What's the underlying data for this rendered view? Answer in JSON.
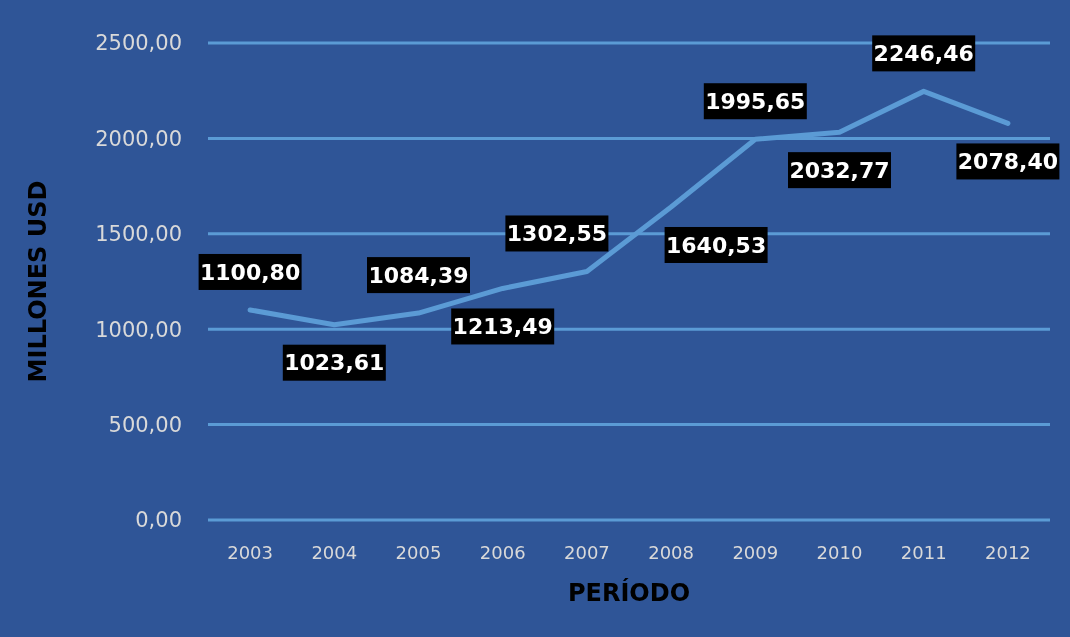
{
  "chart_data": {
    "type": "line",
    "xlabel": "PERÍODO",
    "ylabel": "MILLONES USD",
    "categories": [
      "2003",
      "2004",
      "2005",
      "2006",
      "2007",
      "2008",
      "2009",
      "2010",
      "2011",
      "2012"
    ],
    "series": [
      {
        "color": "#5b9bd5",
        "values": [
          1100.8,
          1023.61,
          1084.39,
          1213.49,
          1302.55,
          1640.53,
          1995.65,
          2032.77,
          2246.46,
          2078.4
        ],
        "value_labels": [
          "1100,80",
          "1023,61",
          "1084,39",
          "1213,49",
          "1302,55",
          "1640,53",
          "1995,65",
          "2032,77",
          "2246,46",
          "2078,40"
        ]
      }
    ],
    "ylim": [
      0,
      2500
    ],
    "yticks": [
      {
        "value": 0,
        "label": "0,00"
      },
      {
        "value": 500,
        "label": "500,00"
      },
      {
        "value": 1000,
        "label": "1000,00"
      },
      {
        "value": 1500,
        "label": "1500,00"
      },
      {
        "value": 2000,
        "label": "2000,00"
      },
      {
        "value": 2500,
        "label": "2500,00"
      }
    ],
    "grid": "y"
  }
}
